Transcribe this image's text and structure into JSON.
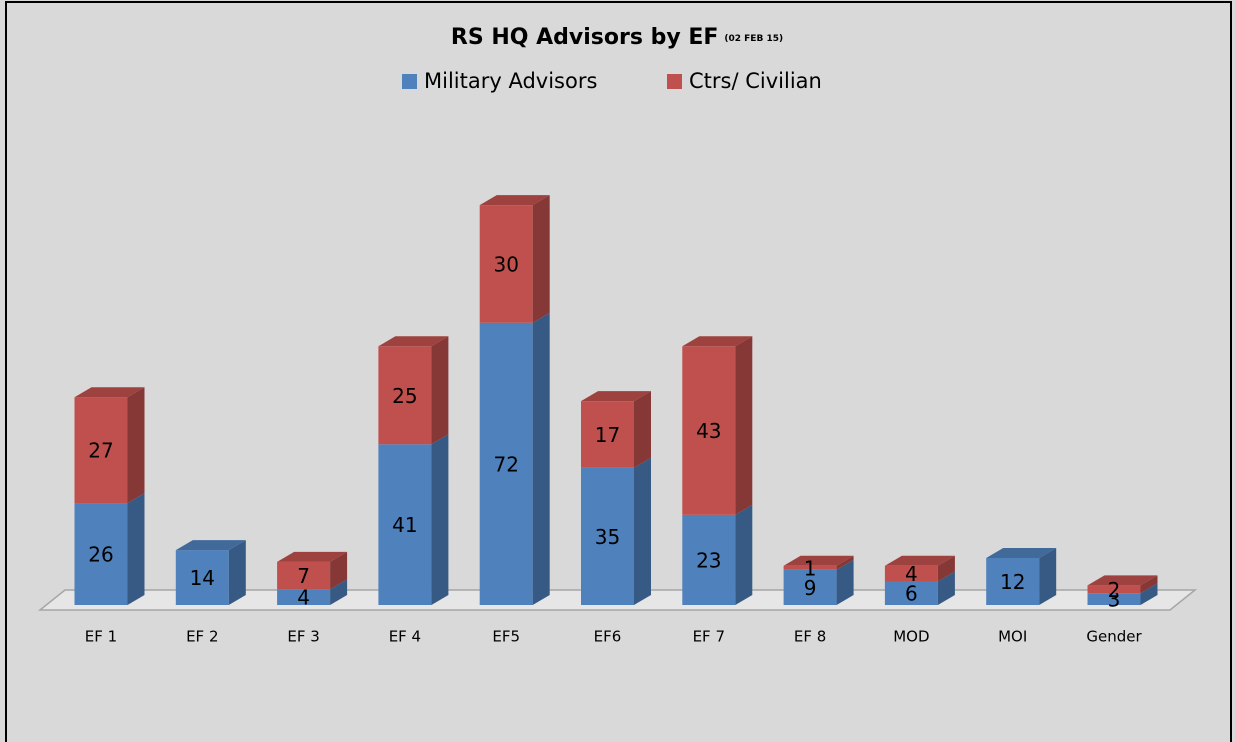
{
  "chart_data": {
    "type": "bar3d_stacked",
    "title": "RS HQ Advisors by EF",
    "subtitle": "(02 FEB 15)",
    "categories": [
      "EF 1",
      "EF 2",
      "EF 3",
      "EF 4",
      "EF5",
      "EF6",
      "EF 7",
      "EF 8",
      "MOD",
      "MOI",
      "Gender"
    ],
    "series": [
      {
        "name": "Military Advisors",
        "color": "#4f81bd",
        "values": [
          26,
          14,
          4,
          41,
          72,
          35,
          23,
          9,
          6,
          12,
          3
        ]
      },
      {
        "name": "Ctrs/ Civilian",
        "color": "#c0504d",
        "values": [
          27,
          null,
          7,
          25,
          30,
          17,
          43,
          1,
          4,
          null,
          2
        ]
      }
    ],
    "legend": "top"
  }
}
